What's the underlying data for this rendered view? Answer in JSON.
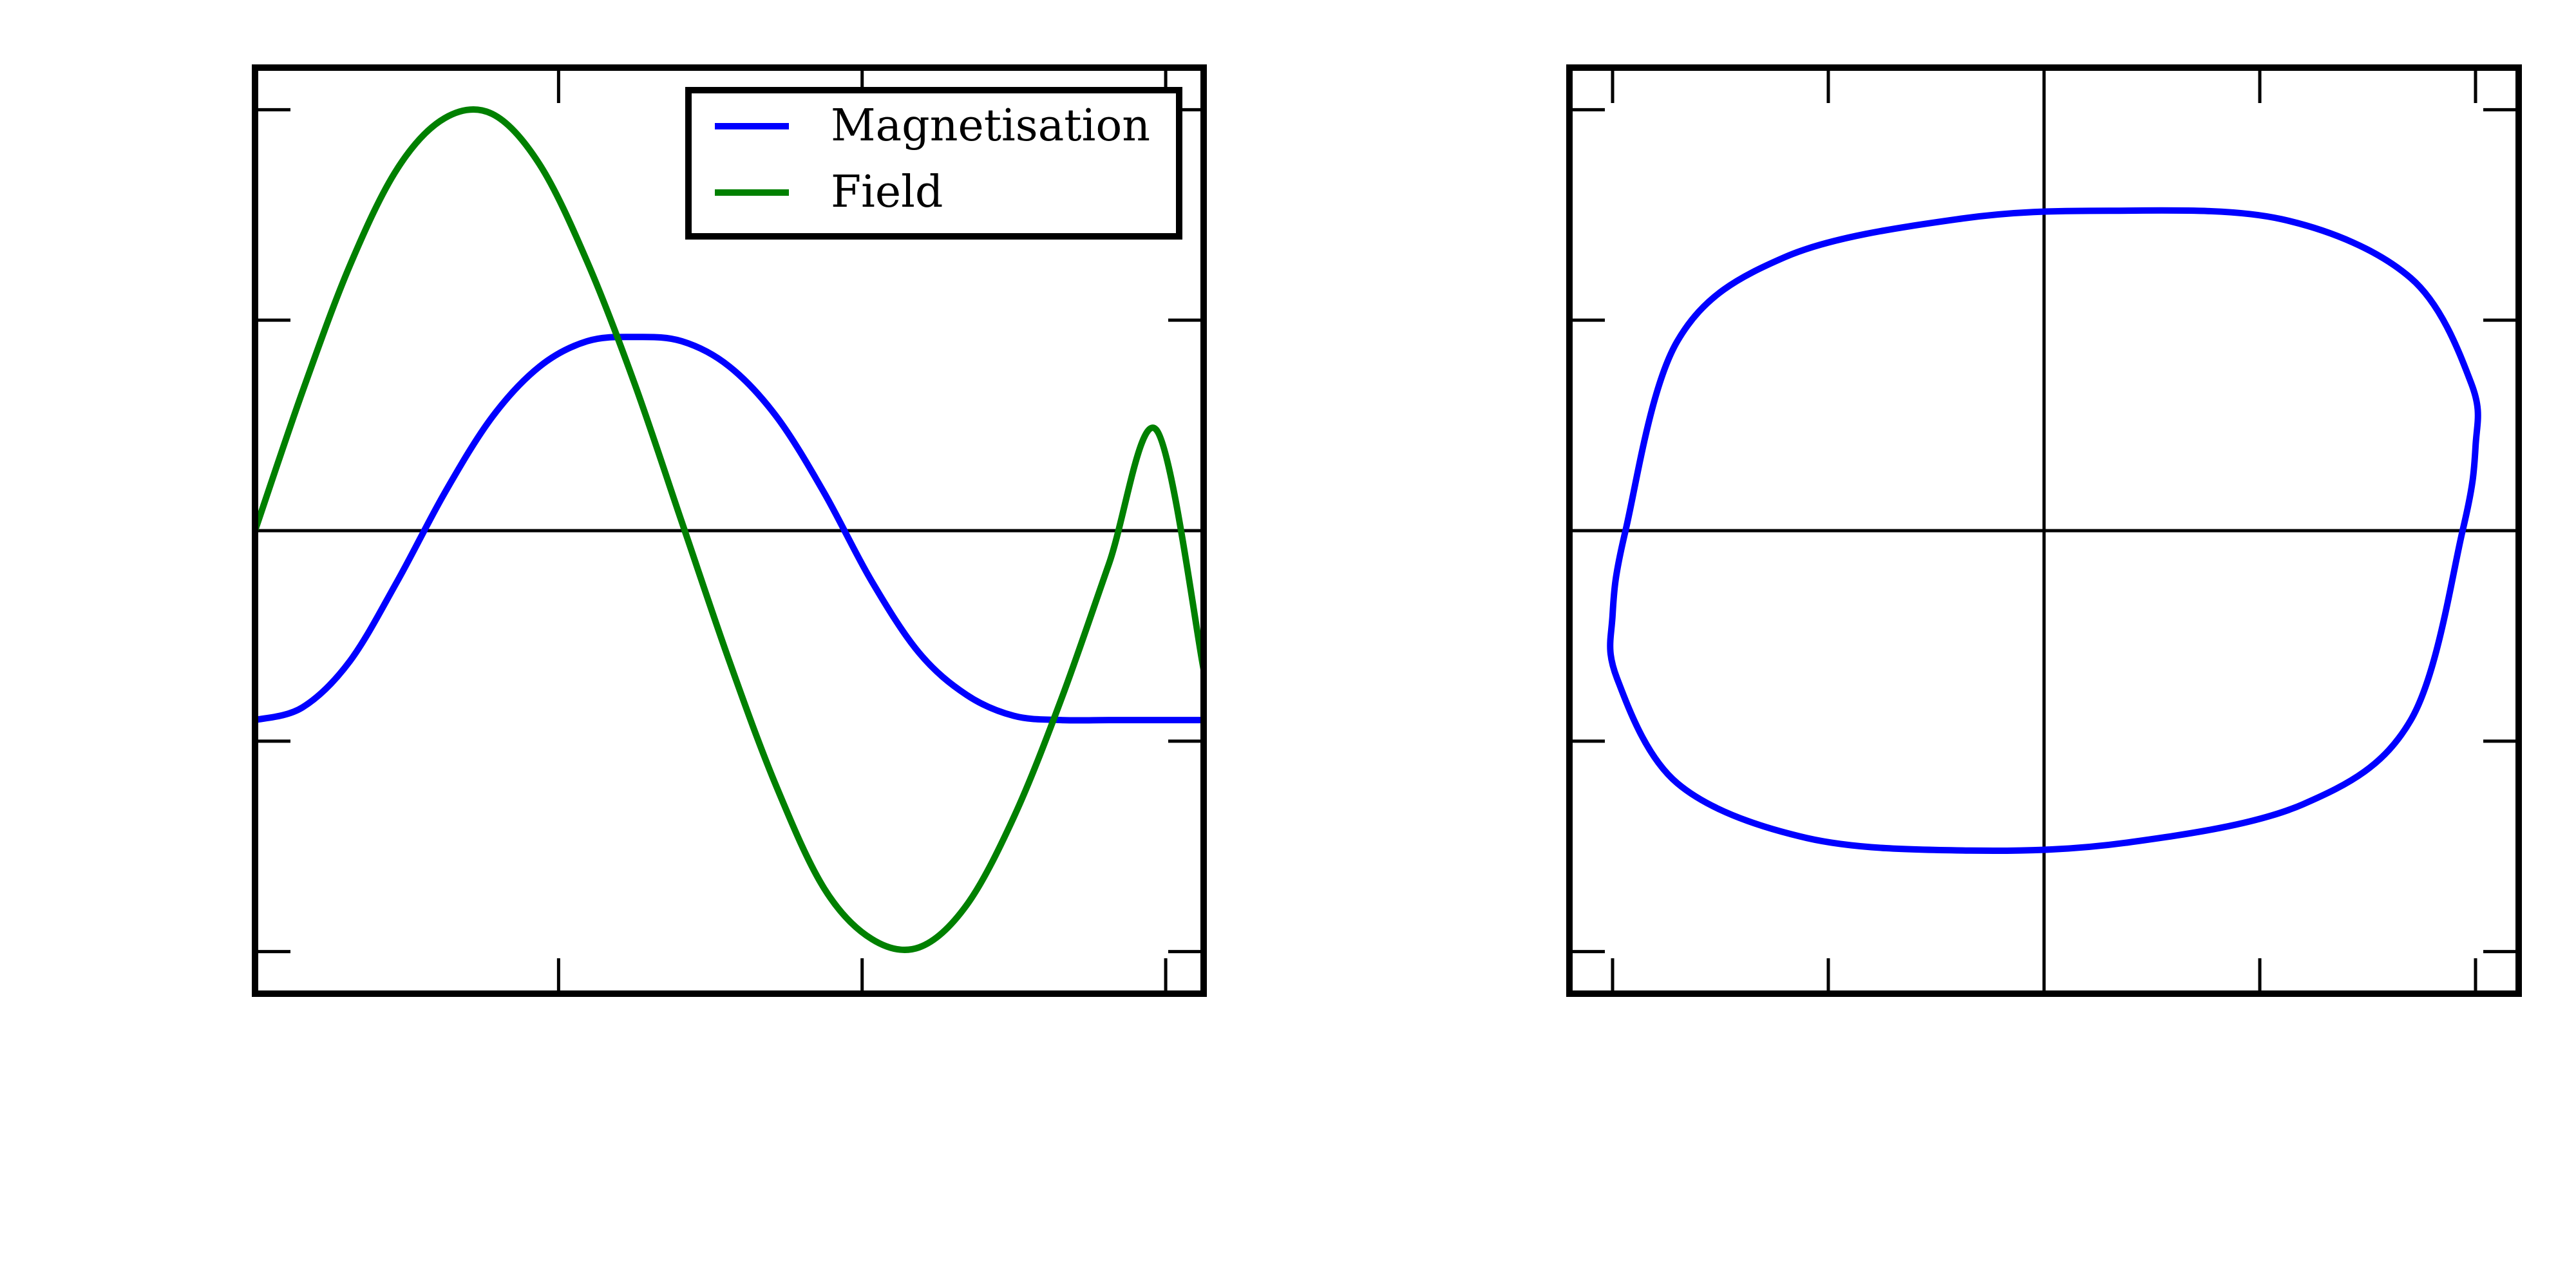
{
  "colors": {
    "magnetisation": "#0000ff",
    "field": "#008000",
    "axes": "#000000",
    "background": "#ffffff"
  },
  "chart_data": [
    {
      "type": "line",
      "title": "",
      "xlabel": "",
      "ylabel": "",
      "xlim": [
        0.0,
        1.0
      ],
      "ylim": [
        -1.1,
        1.1
      ],
      "tick_labels_shown": false,
      "xticks": [
        0.32,
        0.64,
        0.96
      ],
      "yticks": [
        -1.0,
        -0.5,
        0.5,
        1.0
      ],
      "zero_line": true,
      "grid": false,
      "legend": {
        "placement": "top-right",
        "entries": [
          "Magnetisation",
          "Field"
        ]
      },
      "series": [
        {
          "name": "Magnetisation",
          "color": "#0000ff",
          "x": [
            0.0,
            0.05,
            0.1,
            0.15,
            0.2,
            0.25,
            0.3,
            0.35,
            0.4,
            0.45,
            0.5,
            0.55,
            0.6,
            0.65,
            0.7,
            0.75,
            0.8,
            0.85,
            0.9,
            0.95,
            1.0
          ],
          "y": [
            -0.45,
            -0.42,
            -0.31,
            -0.12,
            0.09,
            0.27,
            0.39,
            0.45,
            0.46,
            0.45,
            0.39,
            0.27,
            0.09,
            -0.12,
            -0.29,
            -0.39,
            -0.44,
            -0.45,
            -0.45,
            -0.45,
            -0.45
          ]
        },
        {
          "name": "Field",
          "color": "#008000",
          "x": [
            0.0,
            0.05,
            0.1,
            0.15,
            0.2,
            0.25,
            0.3,
            0.35,
            0.4,
            0.45,
            0.5,
            0.55,
            0.6,
            0.65,
            0.7,
            0.75,
            0.8,
            0.85,
            0.9,
            0.95,
            1.0
          ],
          "y": [
            0.0,
            0.33,
            0.63,
            0.86,
            0.98,
            0.99,
            0.87,
            0.64,
            0.35,
            0.02,
            -0.31,
            -0.61,
            -0.85,
            -0.97,
            -0.99,
            -0.89,
            -0.68,
            -0.4,
            -0.08,
            0.24,
            -0.33
          ]
        }
      ]
    },
    {
      "type": "line",
      "title": "",
      "xlabel": "",
      "ylabel": "",
      "xlim": [
        -1.1,
        1.1
      ],
      "ylim": [
        -1.1,
        1.1
      ],
      "tick_labels_shown": false,
      "xticks": [
        -1.0,
        -0.5,
        0.5,
        1.0
      ],
      "yticks": [
        -1.0,
        -0.5,
        0.5,
        1.0
      ],
      "zero_line": true,
      "grid": false,
      "series": [
        {
          "name": "",
          "color": "#0000ff",
          "x": [
            0.15,
            0.55,
            0.85,
            0.99,
            1.0,
            0.97,
            0.85,
            0.6,
            0.2,
            -0.17,
            -0.55,
            -0.85,
            -0.99,
            -1.0,
            -0.97,
            -0.85,
            -0.6,
            -0.2,
            0.15
          ],
          "y": [
            0.76,
            0.74,
            0.6,
            0.35,
            0.2,
            0.0,
            -0.45,
            -0.65,
            -0.74,
            -0.76,
            -0.73,
            -0.6,
            -0.35,
            -0.2,
            0.0,
            0.45,
            0.65,
            0.74,
            0.76
          ]
        }
      ]
    }
  ]
}
